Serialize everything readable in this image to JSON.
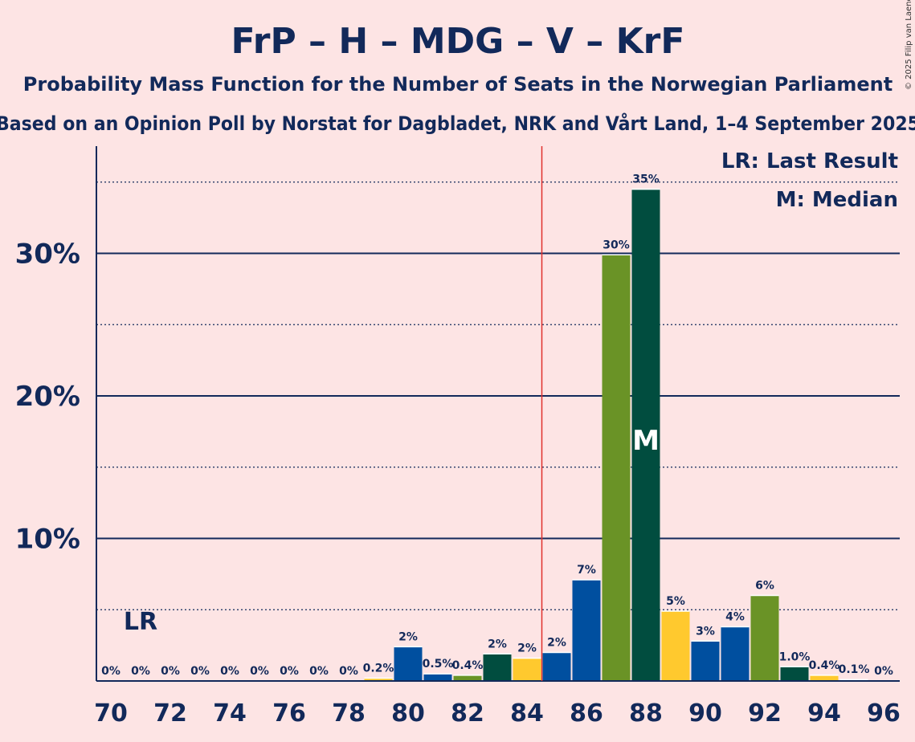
{
  "title": "FrP – H – MDG – V – KrF",
  "subtitle": "Probability Mass Function for the Number of Seats in the Norwegian Parliament",
  "subtitle2": "Based on an Opinion Poll by Norstat for Dagbladet, NRK and Vårt Land, 1–4 September 2025",
  "copyright": "© 2025 Filip van Laenen",
  "legend": {
    "lr": "LR: Last Result",
    "median": "M: Median"
  },
  "colors": {
    "background": "#fde4e4",
    "text": "#12295a",
    "majority_line": "#e0302c",
    "bar_palette": [
      "#004f9f",
      "#014d3f",
      "#6a9326",
      "#ffc92e",
      "#00569c"
    ]
  },
  "chart_data": {
    "type": "bar",
    "x": [
      70,
      71,
      72,
      73,
      74,
      75,
      76,
      77,
      78,
      79,
      80,
      81,
      82,
      83,
      84,
      85,
      86,
      87,
      88,
      89,
      90,
      91,
      92,
      93,
      94,
      95,
      96
    ],
    "values": [
      0,
      0,
      0,
      0,
      0,
      0,
      0,
      0,
      0,
      0.2,
      2.4,
      0.5,
      0.4,
      1.9,
      1.6,
      2.0,
      7.1,
      29.9,
      34.5,
      4.9,
      2.8,
      3.8,
      6.0,
      1.0,
      0.4,
      0.1,
      0
    ],
    "data_labels": [
      "0%",
      "0%",
      "0%",
      "0%",
      "0%",
      "0%",
      "0%",
      "0%",
      "0%",
      "0.2%",
      "2%",
      "0.5%",
      "0.4%",
      "2%",
      "2%",
      "2%",
      "7%",
      "30%",
      "35%",
      "5%",
      "3%",
      "4%",
      "6%",
      "1.0%",
      "0.4%",
      "0.1%",
      "0%"
    ],
    "bar_colors": [
      "#004f9f",
      "#004f9f",
      "#004f9f",
      "#004f9f",
      "#004f9f",
      "#004f9f",
      "#004f9f",
      "#004f9f",
      "#004f9f",
      "#ffc92e",
      "#004f9f",
      "#004f9f",
      "#6a9326",
      "#014d3f",
      "#ffc92e",
      "#004f9f",
      "#004f9f",
      "#6a9326",
      "#014d3f",
      "#ffc92e",
      "#004f9f",
      "#004f9f",
      "#6a9326",
      "#014d3f",
      "#ffc92e",
      "#004f9f",
      "#004f9f"
    ],
    "x_tick_labels": [
      "70",
      "72",
      "74",
      "76",
      "78",
      "80",
      "82",
      "84",
      "86",
      "88",
      "90",
      "92",
      "94",
      "96"
    ],
    "x_tick_values": [
      70,
      72,
      74,
      76,
      78,
      80,
      82,
      84,
      86,
      88,
      90,
      92,
      94,
      96
    ],
    "y_tick_labels": [
      "10%",
      "20%",
      "30%"
    ],
    "y_tick_values": [
      10,
      20,
      30
    ],
    "y_minor_gridlines": [
      5,
      15,
      25,
      35
    ],
    "ylim": [
      0,
      37.5
    ],
    "majority_line_x": 84.5,
    "last_result_x": 71,
    "last_result_label": "LR",
    "median_x": 88,
    "median_label": "M",
    "grid": true,
    "legend_position": "top-right"
  }
}
